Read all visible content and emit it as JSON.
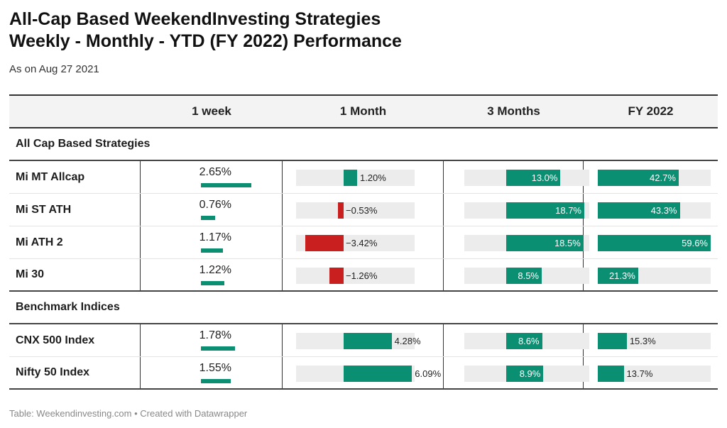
{
  "title_line1": "All-Cap Based WeekendInvesting Strategies",
  "title_line2": "Weekly - Monthly - YTD (FY 2022)  Performance",
  "subtitle": "As on Aug 27 2021",
  "footer": "Table: Weekendinvesting.com • Created with Datawrapper",
  "colors": {
    "positive": "#0b8f73",
    "negative": "#c91f1f",
    "track": "#ececec"
  },
  "chart_data": {
    "type": "table",
    "columns": [
      "",
      "1 week",
      "1 Month",
      "3 Months",
      "FY 2022"
    ],
    "groups": [
      {
        "name": "All Cap Based Strategies",
        "rows": [
          {
            "name": "Mi MT Allcap",
            "week": 2.65,
            "month": 1.2,
            "m3": 13.0,
            "fy": 42.7,
            "week_label": "2.65%",
            "month_label": "1.20%",
            "m3_label": "13.0%",
            "fy_label": "42.7%"
          },
          {
            "name": "Mi ST ATH",
            "week": 0.76,
            "month": -0.53,
            "m3": 18.7,
            "fy": 43.3,
            "week_label": "0.76%",
            "month_label": "−0.53%",
            "m3_label": "18.7%",
            "fy_label": "43.3%"
          },
          {
            "name": "Mi ATH 2",
            "week": 1.17,
            "month": -3.42,
            "m3": 18.5,
            "fy": 59.6,
            "week_label": "1.17%",
            "month_label": "−3.42%",
            "m3_label": "18.5%",
            "fy_label": "59.6%"
          },
          {
            "name": "Mi 30",
            "week": 1.22,
            "month": -1.26,
            "m3": 8.5,
            "fy": 21.3,
            "week_label": "1.22%",
            "month_label": "−1.26%",
            "m3_label": "8.5%",
            "fy_label": "21.3%"
          }
        ]
      },
      {
        "name": "Benchmark Indices",
        "rows": [
          {
            "name": "CNX 500 Index",
            "week": 1.78,
            "month": 4.28,
            "m3": 8.6,
            "fy": 15.3,
            "week_label": "1.78%",
            "month_label": "4.28%",
            "m3_label": "8.6%",
            "fy_label": "15.3%"
          },
          {
            "name": "Nifty 50 Index",
            "week": 1.55,
            "month": 6.09,
            "m3": 8.9,
            "fy": 13.7,
            "week_label": "1.55%",
            "month_label": "6.09%",
            "m3_label": "8.9%",
            "fy_label": "13.7%"
          }
        ]
      }
    ]
  }
}
